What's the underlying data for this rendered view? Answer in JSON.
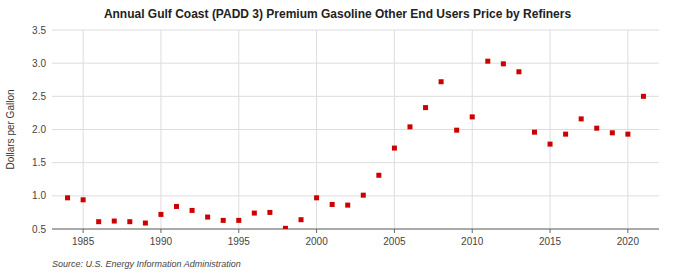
{
  "chart_data": {
    "type": "scatter",
    "title": "Annual Gulf Coast (PADD 3) Premium Gasoline Other End Users Price by Refiners",
    "y_label": "Dollars per Gallon",
    "source": "Source: U.S. Energy Information Administration",
    "color": "#cc0000",
    "marker": "square",
    "grid": true,
    "xlim": [
      1983,
      2022
    ],
    "ylim": [
      0.5,
      3.5
    ],
    "xticks": [
      1985,
      1990,
      1995,
      2000,
      2005,
      2010,
      2015,
      2020
    ],
    "yticks": [
      0.5,
      {
        "value": 1.0,
        "label": "1.0"
      },
      1.5,
      {
        "value": 2.0,
        "label": "2.0"
      },
      2.5,
      {
        "value": 3.0,
        "label": "3.0"
      },
      3.5
    ],
    "x": [
      1984,
      1985,
      1986,
      1987,
      1988,
      1989,
      1990,
      1991,
      1992,
      1993,
      1994,
      1995,
      1996,
      1997,
      1998,
      1999,
      2000,
      2001,
      2002,
      2003,
      2004,
      2005,
      2006,
      2007,
      2008,
      2009,
      2010,
      2011,
      2012,
      2013,
      2014,
      2015,
      2016,
      2017,
      2018,
      2019,
      2020,
      2021
    ],
    "values": [
      0.97,
      0.94,
      0.61,
      0.62,
      0.61,
      0.59,
      0.72,
      0.84,
      0.78,
      0.68,
      0.63,
      0.63,
      0.74,
      0.75,
      0.51,
      0.64,
      0.97,
      0.87,
      0.86,
      1.01,
      1.31,
      1.72,
      2.04,
      2.33,
      2.72,
      1.99,
      2.19,
      3.03,
      2.99,
      2.87,
      1.96,
      1.78,
      1.93,
      2.16,
      2.02,
      1.95,
      1.93,
      2.5
    ]
  }
}
